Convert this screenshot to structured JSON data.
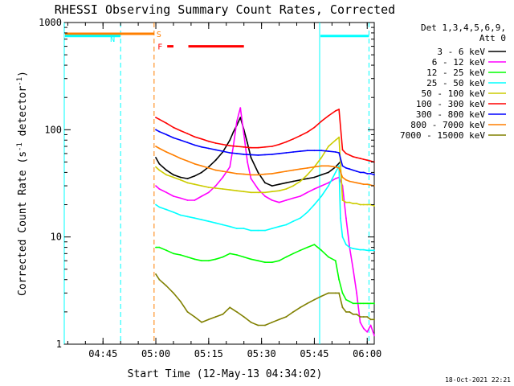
{
  "chart_data": {
    "type": "line",
    "title": "RHESSI Observing Summary Count Rates, Corrected",
    "xlabel": "Start Time (12-May-13 04:34:02)",
    "ylabel_main": "Corrected Count Rate (s",
    "ylabel_sup1": "-1",
    "ylabel_mid": " detector",
    "ylabel_sup2": "-1",
    "ylabel_end": ")",
    "yscale": "log",
    "ylim": [
      1,
      1000
    ],
    "xlim_minutes": [
      0,
      88
    ],
    "x_ticks": [
      {
        "label": "04:45",
        "minute": 11
      },
      {
        "label": "05:00",
        "minute": 26
      },
      {
        "label": "05:15",
        "minute": 41
      },
      {
        "label": "05:30",
        "minute": 56
      },
      {
        "label": "05:45",
        "minute": 71
      },
      {
        "label": "06:00",
        "minute": 86
      }
    ],
    "y_ticks": [
      {
        "label": "1",
        "value": 1
      },
      {
        "label": "10",
        "value": 10
      },
      {
        "label": "100",
        "value": 100
      },
      {
        "label": "1000",
        "value": 1000
      }
    ],
    "legend_header": [
      "Det 1,3,4,5,6,9,",
      "Att 0"
    ],
    "series": [
      {
        "name": "3 - 6 keV",
        "color": "#000000",
        "x": [
          26,
          27,
          29,
          31,
          33,
          35,
          37,
          39,
          41,
          43,
          45,
          47,
          48,
          49,
          50,
          51,
          52,
          53,
          55,
          57,
          59,
          61,
          63,
          65,
          67,
          69,
          71,
          73,
          75,
          77,
          78.3
        ],
        "y": [
          55,
          48,
          42,
          38,
          36,
          35,
          37,
          40,
          45,
          52,
          62,
          80,
          95,
          110,
          130,
          100,
          75,
          55,
          40,
          32,
          30,
          31,
          32,
          33,
          34,
          35,
          36,
          38,
          40,
          45,
          50
        ]
      },
      {
        "name": "6 - 12 keV",
        "color": "#ff00ff",
        "x": [
          26,
          27,
          29,
          31,
          33,
          35,
          37,
          39,
          41,
          43,
          45,
          47,
          48,
          49,
          50,
          51,
          52,
          53,
          55,
          57,
          59,
          61,
          63,
          65,
          67,
          69,
          71,
          73,
          75,
          77,
          78,
          79,
          80,
          81,
          82,
          83,
          84,
          85,
          86,
          87,
          88
        ],
        "y": [
          30,
          28,
          26,
          24,
          23,
          22,
          22,
          24,
          26,
          30,
          36,
          45,
          70,
          120,
          160,
          90,
          50,
          35,
          28,
          24,
          22,
          21,
          22,
          23,
          24,
          26,
          28,
          30,
          32,
          35,
          36,
          30,
          15,
          8,
          5,
          3,
          1.6,
          1.4,
          1.3,
          1.5,
          1.2
        ]
      },
      {
        "name": "12 - 25 keV",
        "color": "#00ff00",
        "x": [
          26,
          27,
          29,
          31,
          33,
          35,
          37,
          39,
          41,
          43,
          45,
          47,
          49,
          51,
          53,
          55,
          57,
          59,
          61,
          63,
          65,
          67,
          69,
          71,
          73,
          75,
          77,
          78,
          79,
          80,
          81,
          82,
          83,
          84,
          85,
          86,
          87,
          88
        ],
        "y": [
          8,
          8,
          7.5,
          7,
          6.8,
          6.5,
          6.2,
          6,
          6,
          6.2,
          6.5,
          7,
          6.8,
          6.5,
          6.2,
          6,
          5.8,
          5.8,
          6,
          6.5,
          7,
          7.5,
          8,
          8.5,
          7.5,
          6.5,
          6,
          4,
          3,
          2.6,
          2.5,
          2.4,
          2.4,
          2.4,
          2.4,
          2.4,
          2.4,
          2.4
        ]
      },
      {
        "name": "25 - 50 keV",
        "color": "#00ffff",
        "x": [
          26,
          27,
          29,
          31,
          33,
          35,
          37,
          39,
          41,
          43,
          45,
          47,
          49,
          51,
          53,
          55,
          57,
          59,
          61,
          63,
          65,
          67,
          69,
          71,
          73,
          75,
          77,
          78,
          78.4,
          79,
          80,
          81,
          82,
          83,
          84,
          85,
          86,
          87,
          88
        ],
        "y": [
          20,
          19,
          18,
          17,
          16,
          15.5,
          15,
          14.5,
          14,
          13.5,
          13,
          12.5,
          12,
          12,
          11.5,
          11.5,
          11.5,
          12,
          12.5,
          13,
          14,
          15,
          17,
          20,
          24,
          30,
          40,
          46,
          15,
          10,
          8.5,
          8,
          7.8,
          7.7,
          7.6,
          7.6,
          7.5,
          7.5,
          7.5
        ]
      },
      {
        "name": "50 - 100 keV",
        "color": "#cccc00",
        "x": [
          26,
          27,
          29,
          31,
          33,
          35,
          37,
          39,
          41,
          43,
          45,
          47,
          49,
          51,
          53,
          55,
          57,
          59,
          61,
          63,
          65,
          67,
          69,
          71,
          73,
          75,
          77,
          78,
          79,
          80,
          81,
          82,
          83,
          84,
          85,
          86,
          87,
          88
        ],
        "y": [
          45,
          42,
          38,
          36,
          34,
          32,
          31,
          30,
          29,
          28.5,
          28,
          27.5,
          27,
          26.5,
          26,
          26,
          26,
          26.5,
          27,
          28,
          30,
          33,
          38,
          45,
          55,
          70,
          80,
          85,
          22,
          21,
          21,
          20.5,
          20.5,
          20,
          20,
          20,
          20,
          19.5
        ]
      },
      {
        "name": "100 - 300 keV",
        "color": "#ff0000",
        "x": [
          26,
          27,
          29,
          31,
          33,
          35,
          37,
          39,
          41,
          43,
          45,
          47,
          49,
          51,
          53,
          55,
          57,
          59,
          61,
          63,
          65,
          67,
          69,
          71,
          73,
          75,
          77,
          78,
          79,
          80,
          81,
          82,
          83,
          84,
          85,
          86,
          87,
          88
        ],
        "y": [
          130,
          125,
          115,
          105,
          98,
          92,
          86,
          82,
          78,
          75,
          73,
          71,
          70,
          69,
          68,
          68,
          69,
          70,
          73,
          77,
          82,
          88,
          95,
          105,
          120,
          135,
          150,
          155,
          65,
          60,
          58,
          56,
          55,
          54,
          53,
          52,
          51,
          50
        ]
      },
      {
        "name": "300 - 800 keV",
        "color": "#0000ff",
        "x": [
          26,
          27,
          29,
          31,
          33,
          35,
          37,
          39,
          41,
          43,
          45,
          47,
          49,
          51,
          53,
          55,
          57,
          59,
          61,
          63,
          65,
          67,
          69,
          71,
          73,
          75,
          77,
          78,
          79,
          80,
          81,
          82,
          83,
          84,
          85,
          86,
          87,
          88
        ],
        "y": [
          100,
          96,
          90,
          84,
          80,
          76,
          72,
          69,
          67,
          65,
          63,
          61,
          60,
          59,
          58.5,
          58,
          58.5,
          59,
          60,
          61,
          62,
          63,
          64,
          64,
          64,
          63,
          62,
          61,
          46,
          44,
          43,
          42,
          41,
          40,
          40,
          39,
          39,
          38
        ]
      },
      {
        "name": "800 - 7000 keV",
        "color": "#ff7f00",
        "x": [
          26,
          27,
          29,
          31,
          33,
          35,
          37,
          39,
          41,
          43,
          45,
          47,
          49,
          51,
          53,
          55,
          57,
          59,
          61,
          63,
          65,
          67,
          69,
          71,
          73,
          75,
          77,
          78,
          79,
          80,
          81,
          82,
          83,
          84,
          85,
          86,
          87,
          88
        ],
        "y": [
          70,
          67,
          62,
          58,
          54,
          51,
          48,
          46,
          44,
          42,
          41,
          40,
          39,
          38.5,
          38,
          38,
          38.5,
          39,
          40,
          41,
          42,
          43,
          44,
          45,
          46,
          46,
          45,
          44,
          36,
          34,
          33,
          32.5,
          32,
          31.5,
          31,
          31,
          30.5,
          30
        ]
      },
      {
        "name": "7000 - 15000 keV",
        "color": "#808000",
        "x": [
          26,
          27,
          29,
          31,
          33,
          35,
          37,
          39,
          41,
          43,
          45,
          47,
          49,
          51,
          53,
          55,
          57,
          59,
          61,
          63,
          65,
          67,
          69,
          71,
          73,
          75,
          77,
          78,
          79,
          80,
          81,
          82,
          83,
          84,
          85,
          86,
          87,
          88
        ],
        "y": [
          4.5,
          4,
          3.5,
          3,
          2.5,
          2,
          1.8,
          1.6,
          1.7,
          1.8,
          1.9,
          2.2,
          2,
          1.8,
          1.6,
          1.5,
          1.5,
          1.6,
          1.7,
          1.8,
          2,
          2.2,
          2.4,
          2.6,
          2.8,
          3,
          3,
          3,
          2.2,
          2,
          2,
          1.9,
          1.9,
          1.8,
          1.8,
          1.8,
          1.7,
          1.7
        ]
      }
    ],
    "flag_bars": [
      {
        "label": "S",
        "color": "#ff7f00",
        "x": [
          0,
          25.5
        ],
        "level": 0.35
      },
      {
        "label": "N",
        "color": "#00ffff",
        "x": [
          0,
          16
        ],
        "level": 0.42
      },
      {
        "label": "N",
        "color": "#00ffff",
        "x": [
          72.5,
          86.5
        ],
        "level": 0.42
      },
      {
        "label": "F",
        "color": "#ff0000",
        "x": [
          29,
          31
        ],
        "level": 0.74
      },
      {
        "label": "F",
        "color": "#ff0000",
        "x": [
          35,
          51
        ],
        "level": 0.74
      }
    ],
    "vlines": [
      {
        "minute": 0,
        "color": "#00ffff",
        "style": "solid"
      },
      {
        "minute": 16,
        "color": "#00ffff",
        "style": "dashed"
      },
      {
        "minute": 25.5,
        "color": "#ff7f00",
        "style": "dashed"
      },
      {
        "minute": 72.5,
        "color": "#00ffff",
        "style": "solid"
      },
      {
        "minute": 86.5,
        "color": "#00ffff",
        "style": "dashed"
      }
    ],
    "footer_timestamp": "18-Oct-2021 22:21"
  }
}
